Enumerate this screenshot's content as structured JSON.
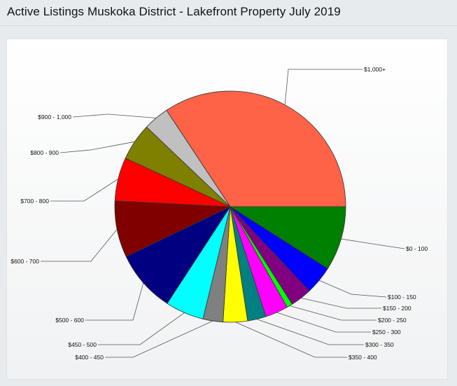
{
  "page": {
    "title": "Active Listings Muskoka District - Lakefront Property July 2019"
  },
  "chart_data": {
    "type": "pie",
    "title": "Active Listings Muskoka District - Lakefront Property July 2019",
    "start_angle_deg": 0,
    "direction": "clockwise",
    "slices": [
      {
        "label": "$0 - 100",
        "value": 9.0,
        "color": "#008000"
      },
      {
        "label": "$100 - 150",
        "value": 4.0,
        "color": "#0000ff"
      },
      {
        "label": "$150 - 200",
        "value": 3.0,
        "color": "#800080"
      },
      {
        "label": "$200 - 250",
        "value": 0.8,
        "color": "#00ff00"
      },
      {
        "label": "$250 - 300",
        "value": 3.2,
        "color": "#ff00ff"
      },
      {
        "label": "$300 - 350",
        "value": 2.6,
        "color": "#008080"
      },
      {
        "label": "$350 - 400",
        "value": 3.4,
        "color": "#ffff00"
      },
      {
        "label": "$400 - 450",
        "value": 2.8,
        "color": "#808080"
      },
      {
        "label": "$450 - 500",
        "value": 5.4,
        "color": "#00ffff"
      },
      {
        "label": "$500 - 600",
        "value": 8.7,
        "color": "#000080"
      },
      {
        "label": "$600 - 700",
        "value": 7.9,
        "color": "#800000"
      },
      {
        "label": "$700 - 800",
        "value": 6.1,
        "color": "#ff0000"
      },
      {
        "label": "$800 - 900",
        "value": 5.2,
        "color": "#808000"
      },
      {
        "label": "$900 - 1,000",
        "value": 3.6,
        "color": "#c0c0c0"
      },
      {
        "label": "$1,000+",
        "value": 34.3,
        "color": "#ff6347"
      }
    ]
  }
}
